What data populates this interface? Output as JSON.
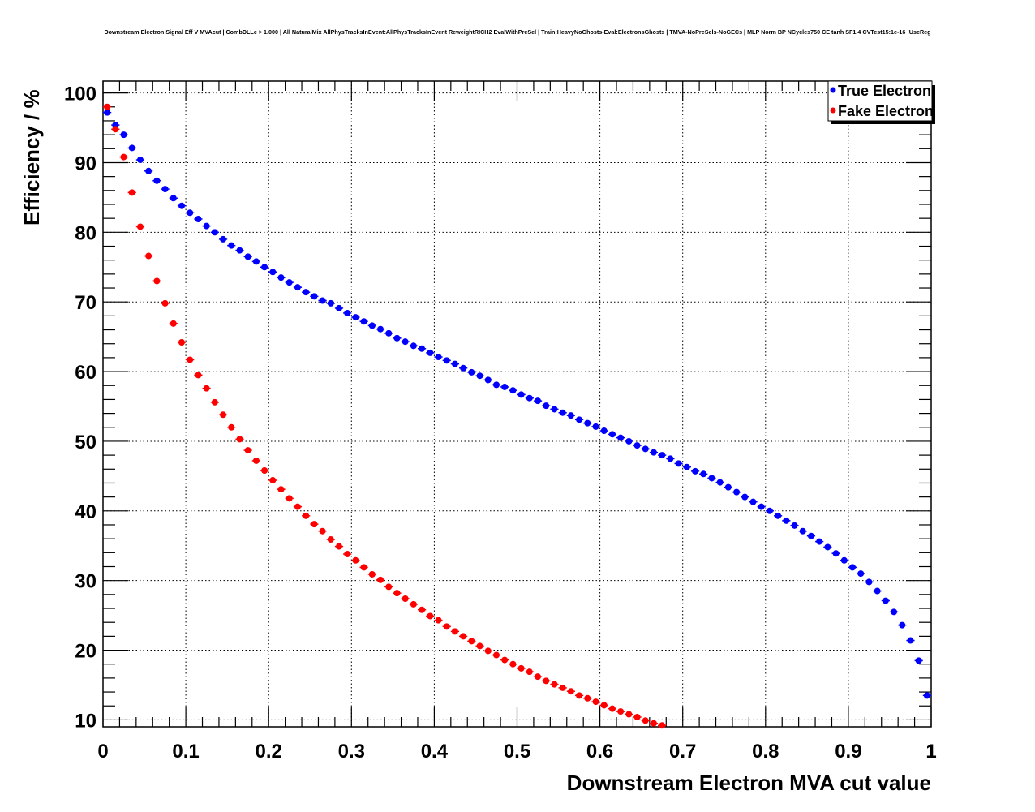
{
  "chart_data": {
    "type": "scatter",
    "title": "Downstream Electron Signal Eff V MVAcut | CombDLLe > 1.000 | All NaturalMix AllPhysTracksInEvent:AllPhysTracksInEvent ReweightRICH2 EvalWithPreSel | Train:HeavyNoGhosts-Eval:ElectronsGhosts | TMVA-NoPreSels-NoGECs | MLP Norm BP NCycles750 CE tanh SF1.4 CVTest15:1e-16 !UseReg",
    "xlabel": "Downstream Electron MVA cut value",
    "ylabel": "Efficiency / %",
    "xlim": [
      0,
      1
    ],
    "ylim": [
      9.0,
      101.7
    ],
    "grid": true,
    "legend_position": "top-right",
    "x_tick_labels": [
      "0",
      "0.1",
      "0.2",
      "0.3",
      "0.4",
      "0.5",
      "0.6",
      "0.7",
      "0.8",
      "0.9",
      "1"
    ],
    "y_tick_labels": [
      "10",
      "20",
      "30",
      "40",
      "50",
      "60",
      "70",
      "80",
      "90",
      "100"
    ],
    "x_start": 0.005,
    "x_step": 0.01,
    "x_error": 0.005,
    "series": [
      {
        "name": "True Electron",
        "color": "#0000ff",
        "values": [
          97.2,
          95.4,
          94.0,
          92.1,
          90.4,
          88.8,
          87.4,
          86.2,
          84.9,
          83.8,
          82.8,
          81.9,
          80.9,
          80.0,
          79.0,
          78.1,
          77.4,
          76.5,
          75.8,
          75.0,
          74.3,
          73.5,
          72.8,
          72.1,
          71.4,
          70.8,
          70.2,
          69.8,
          69.1,
          68.4,
          67.8,
          67.2,
          66.6,
          66.1,
          65.5,
          64.8,
          64.3,
          63.7,
          63.3,
          62.7,
          62.1,
          61.6,
          61.1,
          60.5,
          59.9,
          59.4,
          58.8,
          58.1,
          57.8,
          57.3,
          56.7,
          56.2,
          55.8,
          55.1,
          54.6,
          54.1,
          53.7,
          53.1,
          52.6,
          52.1,
          51.5,
          51.0,
          50.5,
          50.0,
          49.4,
          48.9,
          48.4,
          48.0,
          47.5,
          46.8,
          46.3,
          45.7,
          45.3,
          44.7,
          44.1,
          43.4,
          42.7,
          42.0,
          41.3,
          40.6,
          40.0,
          39.3,
          38.6,
          37.9,
          37.1,
          36.4,
          35.6,
          34.8,
          33.9,
          32.9,
          31.9,
          31.0,
          29.8,
          28.5,
          27.1,
          25.5,
          23.6,
          21.4,
          18.5,
          13.5
        ]
      },
      {
        "name": "Fake Electron",
        "color": "#ff0000",
        "values": [
          98.0,
          94.8,
          90.8,
          85.7,
          80.8,
          76.6,
          73.0,
          69.8,
          66.9,
          64.2,
          61.7,
          59.5,
          57.6,
          55.6,
          53.8,
          52.0,
          50.3,
          48.7,
          47.2,
          45.8,
          44.4,
          43.1,
          41.8,
          40.6,
          39.3,
          38.1,
          37.1,
          35.9,
          34.9,
          33.8,
          32.9,
          31.9,
          30.9,
          30.1,
          29.1,
          28.2,
          27.4,
          26.6,
          25.8,
          24.9,
          24.3,
          23.4,
          22.7,
          22.0,
          21.3,
          20.6,
          19.9,
          19.3,
          18.6,
          18.0,
          17.4,
          16.9,
          16.2,
          15.6,
          15.1,
          14.6,
          14.1,
          13.5,
          13.1,
          12.6,
          12.1,
          11.6,
          11.2,
          10.8,
          10.4,
          9.9,
          9.5,
          9.2
        ]
      }
    ]
  }
}
